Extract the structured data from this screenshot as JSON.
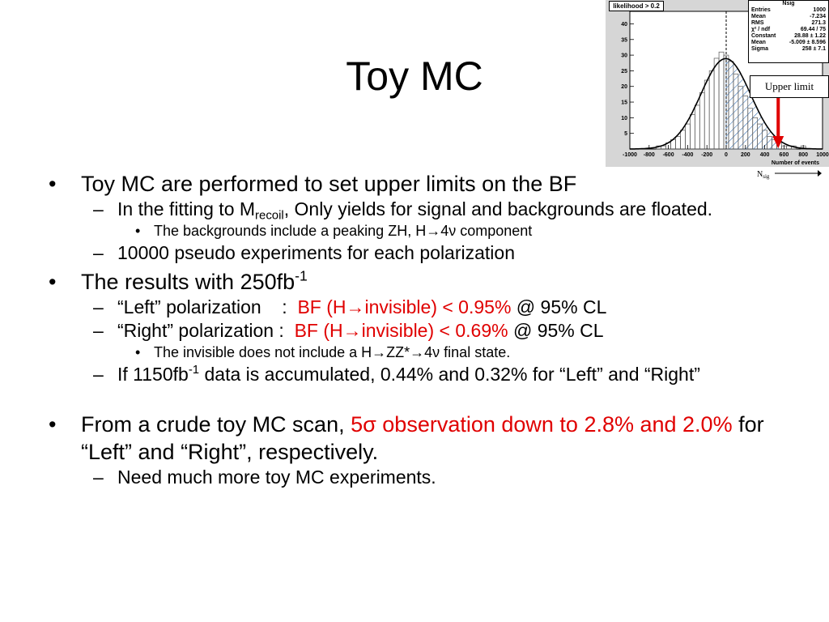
{
  "slide": {
    "title": "Toy MC",
    "bullets": [
      {
        "text": "Toy MC are performed to set upper limits on the BF"
      },
      {
        "pre": "In the fitting to M",
        "sub": "recoil",
        "post": ", Only yields for signal and backgrounds are floated."
      },
      {
        "pre": "The backgrounds include a peaking ZH, H",
        "arrow": "→",
        "post": "4ν component"
      },
      {
        "text": "10000 pseudo experiments for each polarization"
      },
      {
        "pre": "The results with 250fb",
        "sup": "-1"
      },
      {
        "pre": "“Left” polarization    :  ",
        "red_pre": "BF (H",
        "arrow": "→",
        "red_post": "invisible) < 0.95%",
        "post": " @ 95% CL"
      },
      {
        "pre": "“Right” polarization :  ",
        "red_pre": "BF (H",
        "arrow": "→",
        "red_post": "invisible) < 0.69%",
        "post": " @ 95% CL"
      },
      {
        "pre": "The invisible does not include a H",
        "arrow": "→",
        "mid": "ZZ*",
        "arrow2": "→",
        "post": "4ν final state."
      },
      {
        "pre": "If 1150fb",
        "sup": "-1",
        "post": " data is accumulated, 0.44% and 0.32% for “Left” and “Right”"
      },
      {
        "pre": "From a crude toy MC scan, ",
        "red": "5σ observation down to 2.8% and 2.0%",
        "post": " for “Left” and “Right”, respectively."
      },
      {
        "text": "Need much more toy MC experiments."
      }
    ]
  },
  "inset": {
    "cut_label": "likelihood > 0.2",
    "stats": {
      "title": "Nsig",
      "rows": [
        {
          "k": "Entries",
          "v": "1000"
        },
        {
          "k": "Mean",
          "v": "-7.234"
        },
        {
          "k": "RMS",
          "v": "271.3"
        },
        {
          "k": "χ² / ndf",
          "v": "69.44 / 75"
        },
        {
          "k": "Constant",
          "v": "28.88 ± 1.22"
        },
        {
          "k": "Mean",
          "v": "-5.009 ± 8.596"
        },
        {
          "k": "Sigma",
          "v": "258 ± 7.1"
        }
      ]
    },
    "annotation": "Upper limit",
    "xlabel": "Number of events",
    "nsig_label": "N",
    "nsig_sub": "sig",
    "chart_data": {
      "type": "bar",
      "x_ticks": [
        "-1000",
        "-800",
        "-600",
        "-400",
        "-200",
        "0",
        "200",
        "400",
        "600",
        "800",
        "1000"
      ],
      "y_ticks": [
        "5",
        "10",
        "15",
        "20",
        "25",
        "30",
        "35",
        "40"
      ],
      "xlim": [
        -1000,
        1000
      ],
      "ylim": [
        0,
        44
      ],
      "bin_centers": [
        -700,
        -650,
        -600,
        -550,
        -500,
        -450,
        -400,
        -350,
        -300,
        -250,
        -200,
        -150,
        -100,
        -50,
        0,
        50,
        100,
        150,
        200,
        250,
        300,
        350,
        400,
        450,
        500,
        550,
        600,
        650,
        700,
        750,
        800
      ],
      "values": [
        1,
        1,
        2,
        3,
        4,
        6,
        8,
        11,
        14,
        18,
        22,
        25,
        29,
        31,
        30,
        28,
        24,
        20,
        17,
        13,
        10,
        8,
        6,
        4,
        3,
        2,
        1,
        1,
        1,
        0,
        1
      ],
      "fit": {
        "constant": 28.88,
        "mean": -5.009,
        "sigma": 258
      },
      "dashed_line_x": 0,
      "upper_limit_x": 540,
      "xlabel": "Number of events"
    }
  }
}
